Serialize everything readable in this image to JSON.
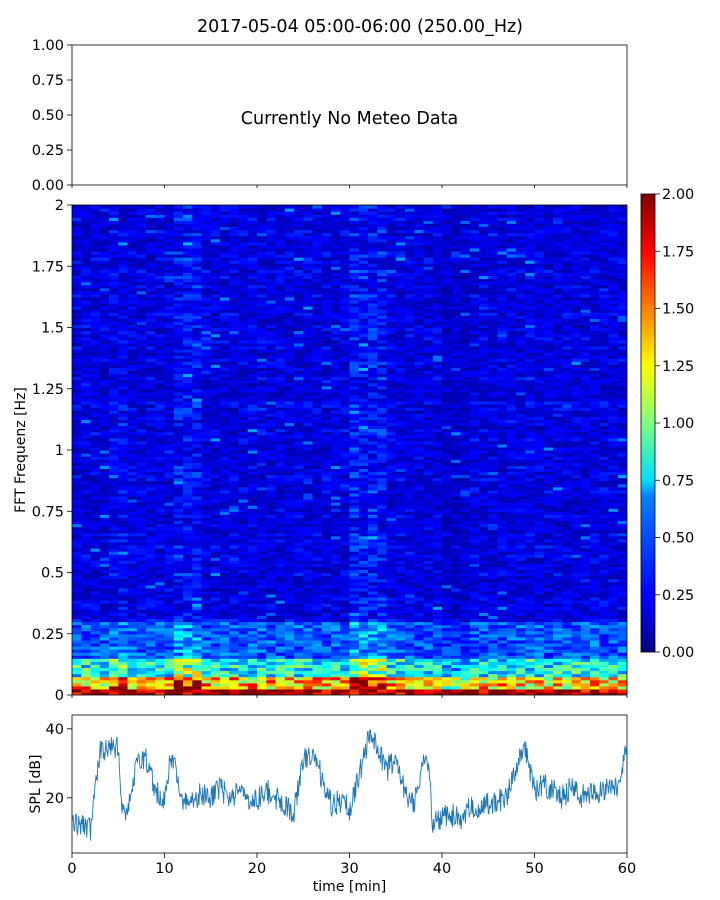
{
  "title": "2017-05-04 05:00-06:00 (250.00_Hz)",
  "chart_data": [
    {
      "type": "text-panel",
      "message": "Currently No Meteo Data",
      "ylim": [
        0,
        1
      ],
      "yticks": [
        "0.00",
        "0.25",
        "0.50",
        "0.75",
        "1.00"
      ],
      "xlim": [
        0,
        60
      ]
    },
    {
      "type": "heatmap",
      "ylabel": "FFT Frequenz [Hz]",
      "xlim": [
        0,
        60
      ],
      "ylim": [
        0,
        2
      ],
      "yticks": [
        {
          "v": 0,
          "label": "0"
        },
        {
          "v": 0.25,
          "label": "0.25"
        },
        {
          "v": 0.5,
          "label": "0.5"
        },
        {
          "v": 0.75,
          "label": "0.75"
        },
        {
          "v": 1.0,
          "label": "1"
        },
        {
          "v": 1.25,
          "label": "1.25"
        },
        {
          "v": 1.5,
          "label": "1.5"
        },
        {
          "v": 1.75,
          "label": "1.75"
        },
        {
          "v": 2.0,
          "label": "2"
        }
      ],
      "colormap": "jet",
      "colorbar": {
        "range": [
          0,
          2
        ],
        "ticks": [
          "0.00",
          "0.25",
          "0.50",
          "0.75",
          "1.00",
          "1.25",
          "1.50",
          "1.75",
          "2.00"
        ]
      }
    },
    {
      "type": "line",
      "ylabel": "SPL [dB]",
      "xlabel": "time [min]",
      "xlim": [
        0,
        60
      ],
      "ylim": [
        4,
        44
      ],
      "yticks": [
        20,
        40
      ],
      "xticks": [
        0,
        10,
        20,
        30,
        40,
        50,
        60
      ],
      "color": "#1f77b4",
      "series": [
        {
          "x": [
            0,
            1,
            2,
            3,
            4,
            5,
            5.5,
            6,
            7,
            8,
            9,
            10,
            10.5,
            11,
            12,
            13,
            14,
            15,
            16,
            17,
            18,
            19,
            20,
            21,
            22,
            23,
            24,
            25,
            26,
            27,
            28,
            29,
            30,
            31,
            32,
            33,
            34,
            35,
            36,
            37,
            38,
            38.5,
            39,
            40,
            41,
            42,
            43,
            44,
            45,
            46,
            47,
            48,
            49,
            50,
            51,
            52,
            53,
            54,
            55,
            56,
            57,
            58,
            59,
            60
          ],
          "y": [
            13,
            12,
            11,
            33,
            34,
            35,
            15,
            18,
            29,
            32,
            22,
            19,
            29,
            31,
            18,
            19,
            21,
            20,
            23,
            20,
            22,
            20,
            19,
            22,
            20,
            18,
            16,
            31,
            33,
            26,
            18,
            19,
            17,
            26,
            37,
            35,
            28,
            32,
            22,
            18,
            32,
            31,
            12,
            14,
            15,
            14,
            18,
            16,
            18,
            19,
            20,
            28,
            35,
            22,
            24,
            22,
            20,
            23,
            20,
            22,
            21,
            24,
            22,
            34
          ]
        }
      ]
    }
  ]
}
